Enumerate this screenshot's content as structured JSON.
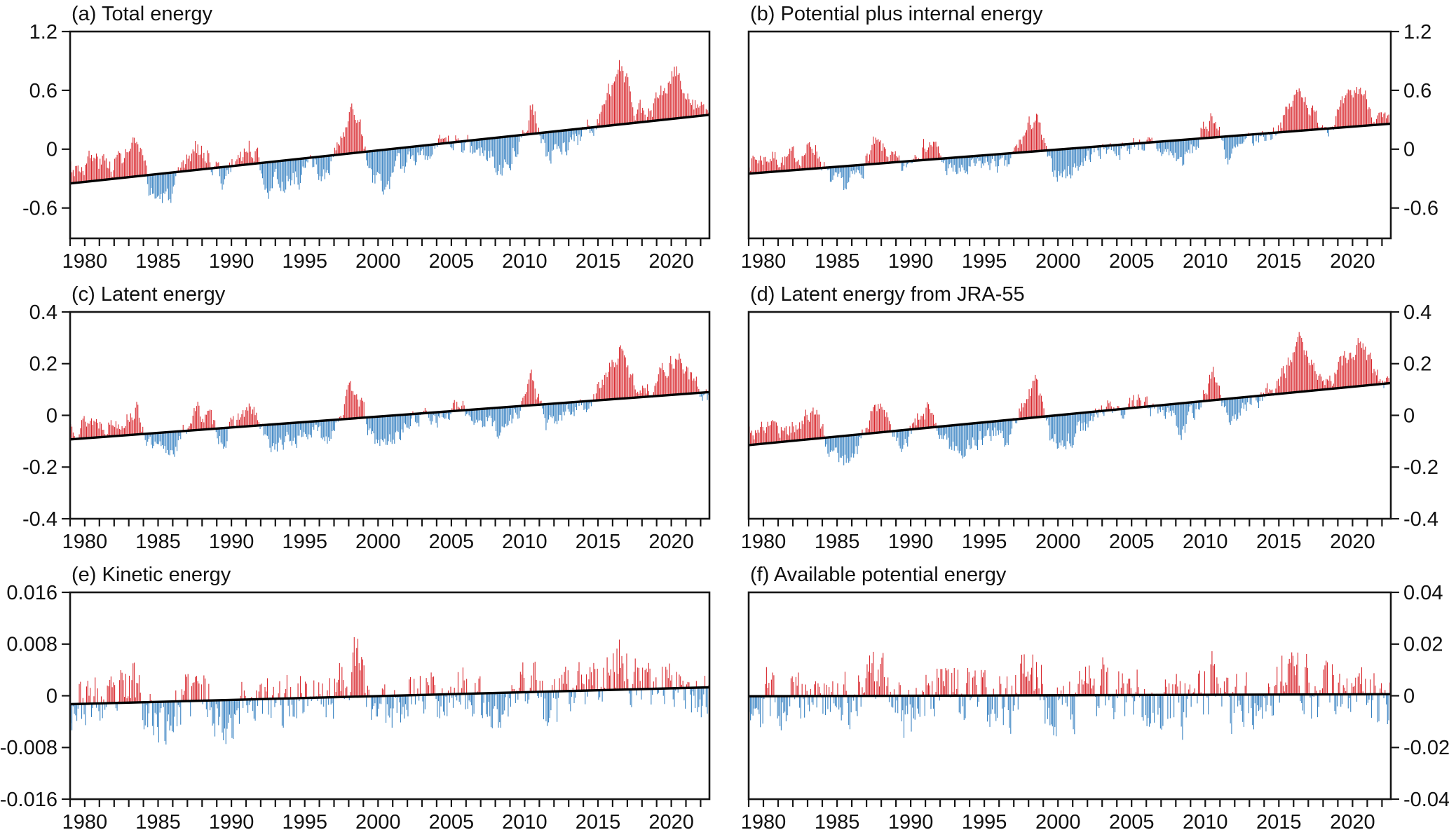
{
  "figure": {
    "background": "#ffffff",
    "positive_bar_color": "#d8262c",
    "negative_bar_color": "#3580c1",
    "trend_line_color": "#000000",
    "frame_color": "#161616",
    "text_color": "#111111",
    "bars_note": "Monthly anomalies drawn from the linear trend line; red = above trend, blue = below trend"
  },
  "chart_data": [
    {
      "id": "a",
      "type": "bar",
      "title": "(a) Total energy",
      "axis_side": "left",
      "xlim": [
        1979,
        2022.6
      ],
      "xticks": [
        1980,
        1985,
        1990,
        1995,
        2000,
        2005,
        2010,
        2015,
        2020
      ],
      "ylim": [
        -0.91,
        1.2
      ],
      "yticks": [
        1.2,
        0.6,
        0,
        -0.6
      ],
      "ytick_labels": [
        "1.2",
        "0.6",
        "0",
        "-0.6"
      ],
      "trend": {
        "x0": 1979,
        "y0": -0.35,
        "x1": 2022.6,
        "y1": 0.35
      },
      "annual_anomaly_vs_trend": {
        "year_start": 1979,
        "values": [
          0.18,
          0.22,
          0.15,
          0.2,
          0.32,
          -0.18,
          -0.28,
          -0.12,
          0.25,
          0.12,
          -0.15,
          0.12,
          0.18,
          -0.22,
          -0.22,
          -0.18,
          -0.1,
          -0.22,
          0.15,
          0.45,
          -0.28,
          -0.38,
          -0.22,
          -0.08,
          0.0,
          -0.08,
          0.02,
          -0.1,
          -0.15,
          -0.3,
          -0.08,
          0.35,
          -0.3,
          -0.18,
          -0.08,
          0.0,
          0.25,
          0.6,
          0.15,
          0.08,
          0.3,
          0.5,
          0.12,
          -0.06
        ]
      },
      "noise_amp": 0.1,
      "noise_ar": 0.55,
      "seed": 3
    },
    {
      "id": "b",
      "type": "bar",
      "title": "(b) Potential plus internal energy",
      "axis_side": "right",
      "xlim": [
        1979,
        2022.6
      ],
      "xticks": [
        1980,
        1985,
        1990,
        1995,
        2000,
        2005,
        2010,
        2015,
        2020
      ],
      "ylim": [
        -0.91,
        1.2
      ],
      "yticks": [
        1.2,
        0.6,
        0,
        -0.6
      ],
      "ytick_labels": [
        "1.2",
        "0.6",
        "0",
        "-0.6"
      ],
      "trend": {
        "x0": 1979,
        "y0": -0.25,
        "x1": 2022.6,
        "y1": 0.26
      },
      "annual_anomaly_vs_trend": {
        "year_start": 1979,
        "values": [
          0.14,
          0.16,
          0.11,
          0.15,
          0.24,
          -0.14,
          -0.22,
          -0.09,
          0.19,
          0.09,
          -0.11,
          0.14,
          0.16,
          -0.12,
          -0.16,
          -0.12,
          -0.07,
          -0.16,
          0.12,
          0.36,
          -0.2,
          -0.26,
          -0.15,
          -0.05,
          0.0,
          -0.06,
          0.02,
          -0.07,
          -0.12,
          -0.22,
          -0.05,
          0.26,
          -0.22,
          -0.13,
          -0.05,
          0.0,
          0.18,
          0.44,
          0.1,
          0.05,
          0.22,
          0.4,
          0.1,
          -0.04
        ]
      },
      "noise_amp": 0.08,
      "noise_ar": 0.55,
      "seed": 7
    },
    {
      "id": "c",
      "type": "bar",
      "title": "(c) Latent energy",
      "axis_side": "left",
      "xlim": [
        1979,
        2022.6
      ],
      "xticks": [
        1980,
        1985,
        1990,
        1995,
        2000,
        2005,
        2010,
        2015,
        2020
      ],
      "ylim": [
        -0.4,
        0.4
      ],
      "yticks": [
        0.4,
        0.2,
        0,
        -0.2,
        -0.4
      ],
      "ytick_labels": [
        "0.4",
        "0.2",
        "0",
        "-0.2",
        "-0.4"
      ],
      "trend": {
        "x0": 1979,
        "y0": -0.093,
        "x1": 2022.6,
        "y1": 0.09
      },
      "annual_anomaly_vs_trend": {
        "year_start": 1979,
        "values": [
          0.055,
          0.07,
          0.05,
          0.06,
          0.1,
          -0.055,
          -0.085,
          -0.04,
          0.08,
          0.04,
          -0.05,
          0.04,
          0.06,
          -0.08,
          -0.08,
          -0.06,
          -0.035,
          -0.07,
          0.04,
          0.13,
          -0.085,
          -0.11,
          -0.065,
          -0.02,
          0.0,
          -0.025,
          0.01,
          -0.03,
          -0.05,
          -0.09,
          -0.02,
          0.11,
          -0.09,
          -0.055,
          -0.02,
          0.0,
          0.08,
          0.185,
          0.05,
          0.03,
          0.1,
          0.15,
          0.04,
          -0.02
        ]
      },
      "noise_amp": 0.03,
      "noise_ar": 0.55,
      "seed": 13
    },
    {
      "id": "d",
      "type": "bar",
      "title": "(d) Latent energy from JRA-55",
      "axis_side": "right",
      "xlim": [
        1979,
        2022.6
      ],
      "xticks": [
        1980,
        1985,
        1990,
        1995,
        2000,
        2005,
        2010,
        2015,
        2020
      ],
      "ylim": [
        -0.4,
        0.4
      ],
      "yticks": [
        0.4,
        0.2,
        0,
        -0.2,
        -0.4
      ],
      "ytick_labels": [
        "0.4",
        "0.2",
        "0",
        "-0.2",
        "-0.4"
      ],
      "trend": {
        "x0": 1979,
        "y0": -0.115,
        "x1": 2022.6,
        "y1": 0.125
      },
      "annual_anomaly_vs_trend": {
        "year_start": 1979,
        "values": [
          0.06,
          0.075,
          0.05,
          0.065,
          0.11,
          -0.06,
          -0.09,
          -0.045,
          0.105,
          0.05,
          -0.055,
          0.05,
          0.07,
          -0.08,
          -0.085,
          -0.065,
          -0.04,
          -0.075,
          0.05,
          0.15,
          -0.09,
          -0.11,
          -0.07,
          -0.02,
          0.01,
          -0.02,
          0.015,
          -0.03,
          -0.05,
          -0.095,
          -0.02,
          0.115,
          -0.09,
          -0.055,
          -0.015,
          0.01,
          0.09,
          0.19,
          0.05,
          0.035,
          0.105,
          0.15,
          0.045,
          -0.025
        ]
      },
      "noise_amp": 0.032,
      "noise_ar": 0.55,
      "seed": 17
    },
    {
      "id": "e",
      "type": "bar",
      "title": "(e) Kinetic energy",
      "axis_side": "left",
      "xlim": [
        1979,
        2022.6
      ],
      "xticks": [
        1980,
        1985,
        1990,
        1995,
        2000,
        2005,
        2010,
        2015,
        2020
      ],
      "ylim": [
        -0.016,
        0.016
      ],
      "yticks": [
        0.016,
        0.008,
        0,
        -0.008,
        -0.016
      ],
      "ytick_labels": [
        "0.016",
        "0.008",
        "0",
        "-0.008",
        "-0.016"
      ],
      "trend": {
        "x0": 1979,
        "y0": -0.0013,
        "x1": 2022.6,
        "y1": 0.0013
      },
      "annual_anomaly_vs_trend": {
        "year_start": 1979,
        "values": [
          0,
          0.0005,
          -0.0005,
          0.001,
          0.0035,
          -0.002,
          -0.0035,
          -0.001,
          0.002,
          0.0005,
          -0.004,
          -0.001,
          0.0005,
          -0.001,
          -0.0005,
          0.0005,
          0.001,
          -0.0005,
          0.002,
          0.006,
          -0.001,
          -0.002,
          -0.0005,
          0.0005,
          0.001,
          -0.0005,
          0.001,
          -0.001,
          -0.003,
          -0.0035,
          0,
          0.003,
          -0.003,
          -0.001,
          0,
          0.0005,
          0.002,
          0.005,
          0.001,
          0,
          0.001,
          0.002,
          -0.001,
          -0.001
        ]
      },
      "noise_amp": 0.0036,
      "noise_ar": 0.32,
      "seed": 23
    },
    {
      "id": "f",
      "type": "bar",
      "title": "(f) Available potential energy",
      "axis_side": "right",
      "xlim": [
        1979,
        2022.6
      ],
      "xticks": [
        1980,
        1985,
        1990,
        1995,
        2000,
        2005,
        2010,
        2015,
        2020
      ],
      "ylim": [
        -0.04,
        0.04
      ],
      "yticks": [
        0.04,
        0.02,
        0,
        -0.02,
        -0.04
      ],
      "ytick_labels": [
        "0.04",
        "0.02",
        "0",
        "-0.02",
        "-0.04"
      ],
      "trend": {
        "x0": 1979,
        "y0": -0.0002,
        "x1": 2022.6,
        "y1": 0.0006
      },
      "annual_anomaly_vs_trend": {
        "year_start": 1979,
        "values": [
          0,
          0,
          -0.001,
          0.002,
          0.004,
          -0.004,
          -0.002,
          0,
          0.008,
          0.004,
          -0.006,
          -0.002,
          0.002,
          0.002,
          -0.002,
          0,
          -0.002,
          -0.006,
          0.006,
          0.008,
          -0.004,
          -0.002,
          0,
          0.002,
          0.002,
          0,
          0.002,
          -0.002,
          -0.004,
          -0.006,
          0,
          0.004,
          -0.006,
          -0.002,
          0,
          0.002,
          0.006,
          0.006,
          0,
          0.002,
          0.002,
          0.004,
          -0.002,
          -0.002
        ]
      },
      "noise_amp": 0.0105,
      "noise_ar": 0.32,
      "seed": 29
    }
  ]
}
